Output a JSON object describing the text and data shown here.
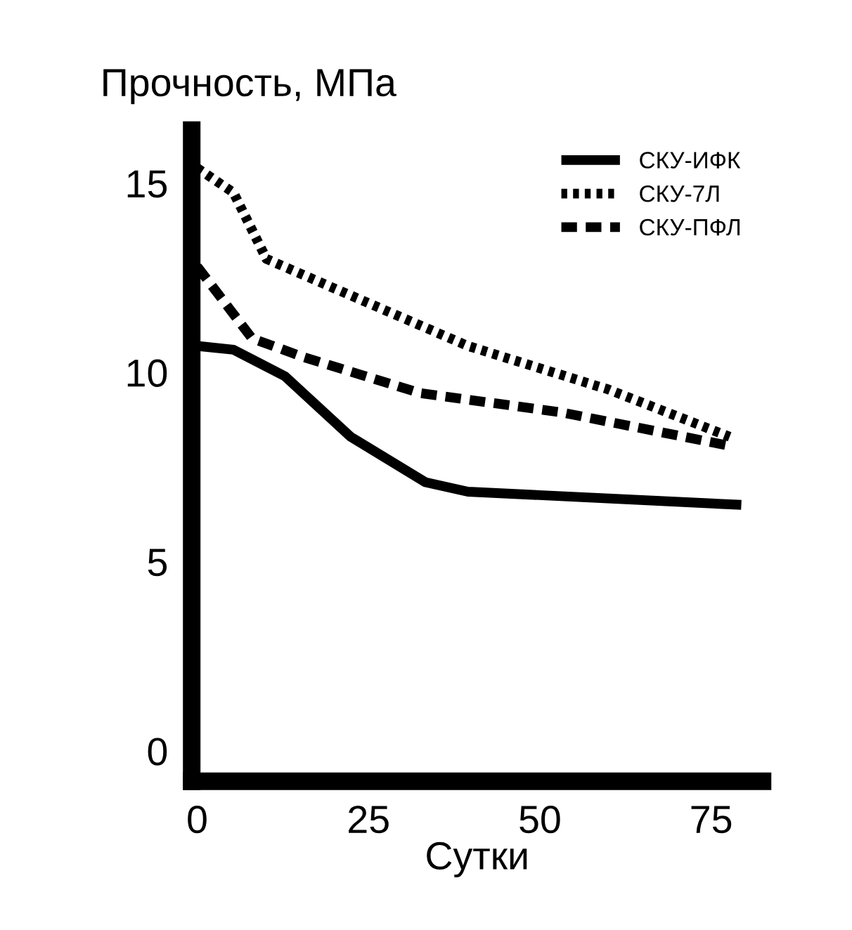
{
  "chart_data": {
    "type": "line",
    "xlabel": "Сутки",
    "ylabel": "Прочность, МПа",
    "xlim": [
      -0.8,
      82.5
    ],
    "ylim": [
      -0.8,
      16.4
    ],
    "xticks": [
      0,
      25,
      50,
      75
    ],
    "yticks": [
      0,
      5,
      10,
      15
    ],
    "grid": false,
    "legend": "top right",
    "marker": "none",
    "series": [
      {
        "name": "СКУ-ИФК",
        "color": "#000000",
        "line_style": "solid",
        "x": [
          0,
          5.3,
          12.8,
          22.4,
          33.3,
          39.5,
          79.4
        ],
        "values": [
          10.7,
          10.6,
          9.9,
          8.3,
          7.1,
          6.85,
          6.5
        ]
      },
      {
        "name": "СКУ-7Л",
        "color": "#000000",
        "line_style": "dotted",
        "x": [
          0,
          5.3,
          10.1,
          19,
          39.5,
          60,
          77.7
        ],
        "values": [
          15.4,
          14.75,
          13.0,
          12.3,
          10.7,
          9.55,
          8.3
        ]
      },
      {
        "name": "СКУ-ПФЛ",
        "color": "#000000",
        "line_style": "dashed",
        "x": [
          0,
          8,
          15.6,
          32.6,
          53,
          78
        ],
        "values": [
          12.8,
          10.9,
          10.4,
          9.45,
          8.95,
          8.05
        ]
      }
    ]
  }
}
